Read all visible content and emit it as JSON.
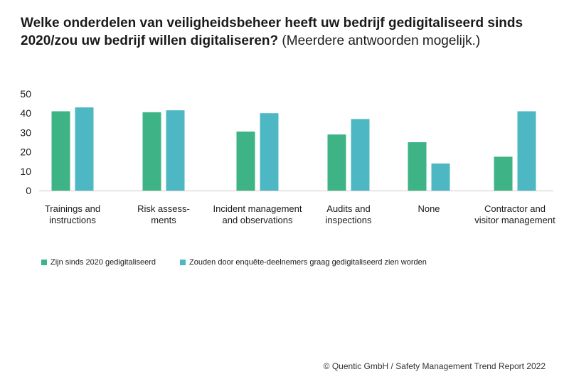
{
  "title": {
    "bold": "Welke onderdelen van veiligheidsbeheer heeft uw bedrijf gedigitaliseerd sinds 2020/zou uw bedrijf willen digitaliseren?",
    "light": "(Meerdere antwoorden mogelijk.)"
  },
  "source": "© Quentic GmbH / Safety Management Trend Report 2022",
  "colors": {
    "green": "#3db386",
    "teal": "#4db8c4",
    "axis": "#cccccc"
  },
  "chart_data": {
    "type": "bar",
    "categories": [
      [
        "Trainings and",
        "instructions"
      ],
      [
        "Risk assess-",
        "ments"
      ],
      [
        "Incident management",
        "and observations"
      ],
      [
        "Audits and",
        "inspections"
      ],
      [
        "None"
      ],
      [
        "Contractor and",
        "visitor management"
      ]
    ],
    "series": [
      {
        "name": "Zijn sinds 2020 gedigitaliseerd",
        "color": "#3db386",
        "values": [
          41,
          40.5,
          30.5,
          29,
          25,
          17.5
        ]
      },
      {
        "name": "Zouden door enquête-deelnemers graag gedigitaliseerd zien worden",
        "color": "#4db8c4",
        "values": [
          43,
          41.5,
          40,
          37,
          14,
          41
        ]
      }
    ],
    "yticks": [
      0,
      10,
      20,
      30,
      40,
      50
    ],
    "ylim": [
      0,
      50
    ],
    "grid": false,
    "legend": "bottom-left"
  }
}
